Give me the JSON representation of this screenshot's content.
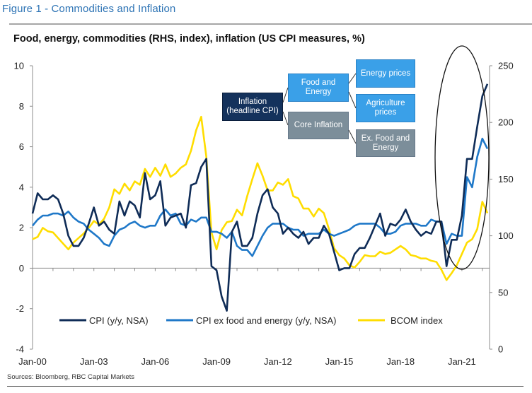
{
  "figure_title": "Figure 1 - Commodities and Inflation",
  "source_note": "Sources: Bloomberg, RBC Capital Markets",
  "diagram": {
    "root": "Inflation\n(headline CPI)",
    "level1": [
      "Food and\nEnergy",
      "Core Inflation"
    ],
    "level2": [
      "Energy prices",
      "Agriculture\nprices",
      "Ex. Food and\nEnergy"
    ]
  },
  "colors": {
    "cpi": "#0f2c57",
    "core": "#1f78c8",
    "bcom": "#ffdd00",
    "title_blue": "#2e74b5",
    "axis": "#8c8c8c"
  },
  "chart_data": {
    "type": "line",
    "title": "Food, energy, commodities (RHS, index), inflation (US CPI measures, %)",
    "xlabel": "",
    "ylabel_left": "US CPI measures, %",
    "ylabel_right": "index",
    "x_tick_labels": [
      "Jan-00",
      "Jan-03",
      "Jan-06",
      "Jan-09",
      "Jan-12",
      "Jan-15",
      "Jan-18",
      "Jan-21"
    ],
    "x_tick_years": [
      2000,
      2003,
      2006,
      2009,
      2012,
      2015,
      2018,
      2021
    ],
    "x_range": [
      2000,
      2022.45
    ],
    "ylim_left": [
      -4,
      10
    ],
    "yticks_left": [
      -4,
      -2,
      0,
      2,
      4,
      6,
      8,
      10
    ],
    "ylim_right": [
      0,
      250
    ],
    "yticks_right": [
      0,
      50,
      100,
      150,
      200,
      250
    ],
    "legend_position": "bottom-center inside plot",
    "grid": false,
    "annotation": "ellipse highlighting 2021-2022 surge",
    "x_start_year": 2000,
    "x_step_years": 0.25,
    "series": [
      {
        "name": "CPI (y/y, NSA)",
        "axis": "left",
        "values": [
          2.7,
          3.7,
          3.4,
          3.4,
          3.6,
          3.4,
          2.7,
          1.6,
          1.1,
          1.1,
          1.5,
          2.2,
          3.0,
          2.1,
          2.3,
          1.9,
          1.7,
          3.3,
          2.6,
          3.3,
          3.1,
          2.5,
          4.7,
          3.4,
          3.6,
          4.3,
          2.1,
          2.5,
          2.6,
          2.7,
          2.0,
          4.1,
          4.2,
          5.0,
          5.4,
          0.1,
          -0.1,
          -1.4,
          -2.1,
          1.8,
          2.3,
          1.1,
          1.1,
          1.5,
          2.7,
          3.6,
          3.9,
          3.0,
          2.7,
          1.7,
          2.0,
          1.7,
          1.5,
          1.8,
          1.2,
          1.5,
          1.5,
          2.1,
          1.7,
          0.8,
          -0.1,
          0.0,
          0.0,
          0.7,
          1.0,
          1.0,
          1.5,
          2.1,
          2.7,
          1.6,
          2.2,
          2.1,
          2.4,
          2.9,
          2.3,
          1.9,
          1.6,
          1.8,
          1.7,
          2.3,
          2.3,
          0.1,
          1.4,
          1.4,
          2.6,
          5.4,
          5.4,
          7.0,
          8.5,
          9.1
        ]
      },
      {
        "name": "CPI ex food and energy (y/y, NSA)",
        "axis": "left",
        "values": [
          2.1,
          2.4,
          2.6,
          2.6,
          2.7,
          2.7,
          2.6,
          2.8,
          2.5,
          2.3,
          2.2,
          1.9,
          1.7,
          1.5,
          1.2,
          1.1,
          1.6,
          1.9,
          2.0,
          2.2,
          2.3,
          2.1,
          2.0,
          2.1,
          2.1,
          2.6,
          2.9,
          2.6,
          2.7,
          2.2,
          2.1,
          2.4,
          2.3,
          2.5,
          2.5,
          1.8,
          1.8,
          1.7,
          1.5,
          1.8,
          1.1,
          0.9,
          0.9,
          0.6,
          1.1,
          1.6,
          2.0,
          2.2,
          2.2,
          2.2,
          2.0,
          1.9,
          1.9,
          1.6,
          1.7,
          1.7,
          1.7,
          1.9,
          1.7,
          1.6,
          1.7,
          1.8,
          1.9,
          2.1,
          2.2,
          2.2,
          2.2,
          2.2,
          2.0,
          1.7,
          1.7,
          1.8,
          2.1,
          2.2,
          2.2,
          2.2,
          2.1,
          2.1,
          2.4,
          2.3,
          2.3,
          1.2,
          1.7,
          1.6,
          1.6,
          4.5,
          4.0,
          5.5,
          6.4,
          5.9
        ]
      },
      {
        "name": "BCOM index",
        "axis": "right",
        "values": [
          97,
          99,
          107,
          104,
          103,
          98,
          93,
          88,
          94,
          98,
          102,
          107,
          113,
          110,
          115,
          125,
          141,
          137,
          146,
          140,
          148,
          145,
          159,
          152,
          160,
          153,
          163,
          152,
          155,
          160,
          163,
          175,
          193,
          205,
          170,
          103,
          88,
          105,
          112,
          113,
          123,
          118,
          135,
          150,
          164,
          153,
          140,
          140,
          147,
          145,
          150,
          135,
          133,
          124,
          124,
          117,
          124,
          120,
          106,
          89,
          83,
          80,
          74,
          72,
          77,
          83,
          82,
          82,
          86,
          84,
          85,
          88,
          91,
          88,
          83,
          82,
          80,
          80,
          78,
          77,
          70,
          61,
          67,
          74,
          84,
          94,
          97,
          106,
          130,
          120
        ]
      }
    ]
  }
}
